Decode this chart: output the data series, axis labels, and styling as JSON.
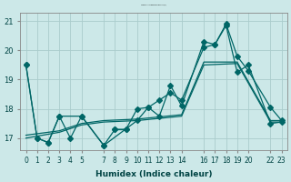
{
  "title": "Courbe de l'humidex pour Buzenol (Be)",
  "xlabel": "Humidex (Indice chaleur)",
  "ylabel": "",
  "bg_color": "#cce8e8",
  "grid_color": "#aacccc",
  "line_color": "#006666",
  "xlim": [
    -0.5,
    23.5
  ],
  "ylim": [
    16.6,
    21.3
  ],
  "yticks": [
    17,
    18,
    19,
    20,
    21
  ],
  "xtick_labels": [
    "0",
    "1",
    "2",
    "3",
    "4",
    "5",
    "",
    "7",
    "8",
    "9",
    "10",
    "11",
    "12",
    "13",
    "14",
    "",
    "16",
    "17",
    "18",
    "19",
    "20",
    "",
    "22",
    "23"
  ],
  "lines": [
    {
      "x": [
        0,
        1,
        2,
        3,
        4,
        5,
        7,
        8,
        9,
        10,
        11,
        12,
        13,
        14,
        16,
        17,
        18,
        19,
        20,
        22,
        23
      ],
      "y": [
        19.5,
        17.0,
        16.85,
        17.75,
        17.0,
        17.75,
        16.75,
        17.3,
        17.3,
        18.0,
        18.05,
        17.75,
        18.8,
        18.1,
        20.3,
        20.2,
        20.9,
        19.8,
        19.3,
        18.05,
        17.6
      ],
      "marker": "D",
      "markersize": 3.0
    },
    {
      "x": [
        0,
        1,
        2,
        3,
        5,
        7,
        10,
        11,
        12,
        13,
        14,
        16,
        17,
        18,
        19,
        20,
        22,
        23
      ],
      "y": [
        19.5,
        17.0,
        16.85,
        17.75,
        17.75,
        16.75,
        17.6,
        18.05,
        18.3,
        18.55,
        18.3,
        20.1,
        20.2,
        20.85,
        19.25,
        19.5,
        17.5,
        17.55
      ],
      "marker": "D",
      "markersize": 3.0
    },
    {
      "x": [
        0,
        3,
        5,
        7,
        10,
        14,
        16,
        19,
        22,
        23
      ],
      "y": [
        17.0,
        17.2,
        17.45,
        17.55,
        17.6,
        17.75,
        19.5,
        19.55,
        17.55,
        17.55
      ],
      "marker": null,
      "markersize": 2.0
    },
    {
      "x": [
        0,
        3,
        5,
        7,
        10,
        14,
        16,
        19,
        22,
        23
      ],
      "y": [
        17.1,
        17.25,
        17.5,
        17.6,
        17.65,
        17.8,
        19.6,
        19.6,
        17.6,
        17.6
      ],
      "marker": null,
      "markersize": 2.0
    },
    {
      "x": [
        8,
        9
      ],
      "y": [
        17.3,
        17.3
      ],
      "marker": "D",
      "markersize": 3.0
    }
  ]
}
